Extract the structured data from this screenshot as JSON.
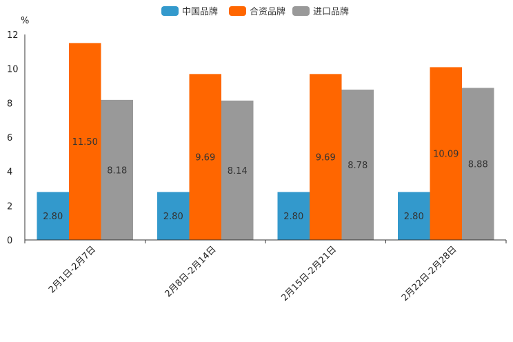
{
  "chart_data": {
    "type": "bar",
    "title": "",
    "xlabel": "",
    "ylabel": "%",
    "ylim": [
      0,
      12
    ],
    "yticks": [
      0,
      2,
      4,
      6,
      8,
      10,
      12
    ],
    "legend_position": "top-center",
    "grid": false,
    "categories": [
      "2月1日-2月7日",
      "2月8日-2月14日",
      "2月15日-2月21日",
      "2月22日-2月28日"
    ],
    "series": [
      {
        "name": "中国品牌",
        "color": "#3399cc",
        "values": [
          2.8,
          2.8,
          2.8,
          2.8
        ],
        "labels": [
          "2.80",
          "2.80",
          "2.80",
          "2.80"
        ]
      },
      {
        "name": "合资品牌",
        "color": "#ff6600",
        "values": [
          11.5,
          9.69,
          9.69,
          10.09
        ],
        "labels": [
          "11.50",
          "9.69",
          "9.69",
          "10.09"
        ]
      },
      {
        "name": "进口品牌",
        "color": "#999999",
        "values": [
          8.18,
          8.14,
          8.78,
          8.88
        ],
        "labels": [
          "8.18",
          "8.14",
          "8.78",
          "8.88"
        ]
      }
    ]
  }
}
